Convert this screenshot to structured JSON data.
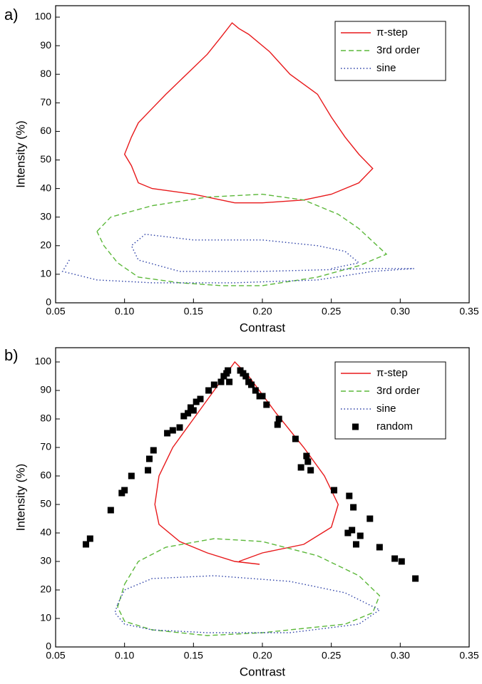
{
  "chart_data": [
    {
      "type": "line",
      "panel_label": "a)",
      "x_label": "Contrast",
      "y_label": "Intensity (%)",
      "xlim": [
        0.05,
        0.35
      ],
      "ylim": [
        0,
        104
      ],
      "xticks": [
        0.05,
        {
          "value": 0.1,
          "label": "0.10"
        },
        0.15,
        {
          "value": 0.2,
          "label": "0.20"
        },
        0.25,
        {
          "value": 0.3,
          "label": "0.30"
        },
        0.35
      ],
      "yticks": [
        0,
        10,
        20,
        30,
        40,
        50,
        60,
        70,
        80,
        90,
        100
      ],
      "legend": "upper right",
      "series": [
        {
          "name": "π-step",
          "color": "#e8191b",
          "style": "solid",
          "x": [
            0.18,
            0.15,
            0.12,
            0.11,
            0.105,
            0.1,
            0.105,
            0.11,
            0.12,
            0.13,
            0.145,
            0.16,
            0.17,
            0.178,
            0.183,
            0.19,
            0.205,
            0.22,
            0.24,
            0.25,
            0.26,
            0.27,
            0.28,
            0.27,
            0.25,
            0.23,
            0.2,
            0.18
          ],
          "values": [
            35,
            38,
            40,
            42,
            48,
            52,
            58,
            63,
            68,
            73,
            80,
            87,
            93,
            98,
            96,
            94,
            88,
            80,
            73,
            65,
            58,
            52,
            47,
            42,
            38,
            36,
            35,
            35
          ]
        },
        {
          "name": "3rd order",
          "color": "#5cb83a",
          "style": "dashed",
          "x": [
            0.08,
            0.09,
            0.12,
            0.16,
            0.2,
            0.23,
            0.255,
            0.27,
            0.29,
            0.27,
            0.24,
            0.2,
            0.17,
            0.14,
            0.11,
            0.095,
            0.085,
            0.08
          ],
          "values": [
            25,
            30,
            34,
            37,
            38,
            36,
            31,
            26,
            17,
            13,
            9,
            6,
            6,
            7,
            9,
            14,
            20,
            25
          ]
        },
        {
          "name": "sine",
          "color": "#2b3fa6",
          "style": "dotted",
          "x": [
            0.06,
            0.055,
            0.08,
            0.12,
            0.18,
            0.24,
            0.28,
            0.31,
            0.28,
            0.2,
            0.14,
            0.11,
            0.105,
            0.115,
            0.15,
            0.2,
            0.24,
            0.26,
            0.27,
            0.25
          ],
          "values": [
            15,
            11,
            8,
            7,
            7,
            8,
            11,
            12,
            12,
            11,
            11,
            15,
            20,
            24,
            22,
            22,
            20,
            18,
            14,
            12
          ]
        }
      ]
    },
    {
      "type": "line",
      "panel_label": "b)",
      "x_label": "Contrast",
      "y_label": "Intensity (%)",
      "xlim": [
        0.05,
        0.35
      ],
      "ylim": [
        0,
        105
      ],
      "xticks": [
        0.05,
        {
          "value": 0.1,
          "label": "0.10"
        },
        0.15,
        {
          "value": 0.2,
          "label": "0.20"
        },
        0.25,
        {
          "value": 0.3,
          "label": "0.30"
        },
        0.35
      ],
      "yticks": [
        0,
        10,
        20,
        30,
        40,
        50,
        60,
        70,
        80,
        90,
        100
      ],
      "legend": "upper right",
      "series": [
        {
          "name": "π-step",
          "color": "#e8191b",
          "style": "solid",
          "x": [
            0.198,
            0.18,
            0.16,
            0.14,
            0.125,
            0.122,
            0.125,
            0.135,
            0.15,
            0.165,
            0.18,
            0.19,
            0.21,
            0.23,
            0.245,
            0.255,
            0.25,
            0.23,
            0.2,
            0.183
          ],
          "values": [
            29,
            30,
            33,
            37,
            43,
            50,
            60,
            70,
            80,
            90,
            100,
            95,
            82,
            70,
            60,
            50,
            42,
            36,
            33,
            30
          ]
        },
        {
          "name": "3rd order",
          "color": "#5cb83a",
          "style": "dashed",
          "x": [
            0.1,
            0.11,
            0.13,
            0.165,
            0.2,
            0.24,
            0.27,
            0.285,
            0.28,
            0.26,
            0.2,
            0.16,
            0.12,
            0.1,
            0.095,
            0.1
          ],
          "values": [
            22,
            30,
            35,
            38,
            37,
            32,
            25,
            18,
            12,
            8,
            5,
            4,
            6,
            9,
            14,
            22
          ]
        },
        {
          "name": "sine",
          "color": "#2b3fa6",
          "style": "dotted",
          "x": [
            0.095,
            0.1,
            0.12,
            0.165,
            0.22,
            0.26,
            0.285,
            0.27,
            0.22,
            0.16,
            0.12,
            0.1,
            0.093,
            0.095
          ],
          "values": [
            15,
            20,
            24,
            25,
            23,
            19,
            13,
            8,
            5,
            5,
            6,
            8,
            12,
            15
          ]
        },
        {
          "name": "random",
          "color": "#000000",
          "style": "markers",
          "x": [
            0.072,
            0.075,
            0.09,
            0.098,
            0.1,
            0.105,
            0.117,
            0.118,
            0.121,
            0.131,
            0.135,
            0.14,
            0.143,
            0.146,
            0.148,
            0.15,
            0.152,
            0.155,
            0.161,
            0.165,
            0.17,
            0.172,
            0.174,
            0.175,
            0.176,
            0.184,
            0.186,
            0.188,
            0.19,
            0.192,
            0.195,
            0.198,
            0.2,
            0.203,
            0.211,
            0.212,
            0.224,
            0.228,
            0.232,
            0.233,
            0.235,
            0.252,
            0.262,
            0.263,
            0.265,
            0.266,
            0.268,
            0.271,
            0.278,
            0.285,
            0.296,
            0.301,
            0.311
          ],
          "values": [
            36,
            38,
            48,
            54,
            55,
            60,
            62,
            66,
            69,
            75,
            76,
            77,
            81,
            82,
            84,
            83,
            86,
            87,
            90,
            92,
            93,
            95,
            96,
            97,
            93,
            97,
            96,
            95,
            93,
            92,
            90,
            88,
            88,
            85,
            78,
            80,
            73,
            63,
            67,
            65,
            62,
            55,
            40,
            53,
            41,
            49,
            36,
            39,
            45,
            35,
            31,
            30,
            24
          ]
        }
      ]
    }
  ]
}
